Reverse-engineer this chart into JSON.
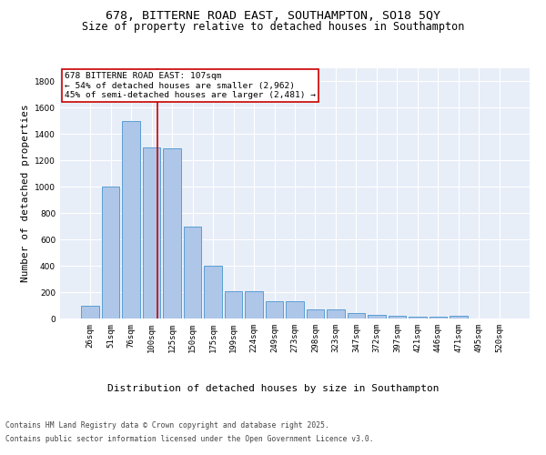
{
  "title_line1": "678, BITTERNE ROAD EAST, SOUTHAMPTON, SO18 5QY",
  "title_line2": "Size of property relative to detached houses in Southampton",
  "xlabel": "Distribution of detached houses by size in Southampton",
  "ylabel": "Number of detached properties",
  "categories": [
    "26sqm",
    "51sqm",
    "76sqm",
    "100sqm",
    "125sqm",
    "150sqm",
    "175sqm",
    "199sqm",
    "224sqm",
    "249sqm",
    "273sqm",
    "298sqm",
    "323sqm",
    "347sqm",
    "372sqm",
    "397sqm",
    "421sqm",
    "446sqm",
    "471sqm",
    "495sqm",
    "520sqm"
  ],
  "values": [
    100,
    1000,
    1500,
    1300,
    1290,
    700,
    400,
    210,
    210,
    130,
    130,
    70,
    70,
    40,
    30,
    20,
    15,
    15,
    20,
    2,
    2
  ],
  "bar_color": "#aec6e8",
  "bar_edgecolor": "#5a9fd4",
  "bg_color": "#e8eef8",
  "grid_color": "#ffffff",
  "vline_pos": 3.28,
  "vline_color": "#cc0000",
  "annotation_text": "678 BITTERNE ROAD EAST: 107sqm\n← 54% of detached houses are smaller (2,962)\n45% of semi-detached houses are larger (2,481) →",
  "annotation_box_color": "#cc0000",
  "ylim": [
    0,
    1900
  ],
  "yticks": [
    0,
    200,
    400,
    600,
    800,
    1000,
    1200,
    1400,
    1600,
    1800
  ],
  "footer_line1": "Contains HM Land Registry data © Crown copyright and database right 2025.",
  "footer_line2": "Contains public sector information licensed under the Open Government Licence v3.0.",
  "title_fontsize": 9.5,
  "subtitle_fontsize": 8.5,
  "label_fontsize": 8,
  "tick_fontsize": 6.5,
  "annotation_fontsize": 6.8,
  "footer_fontsize": 5.8
}
